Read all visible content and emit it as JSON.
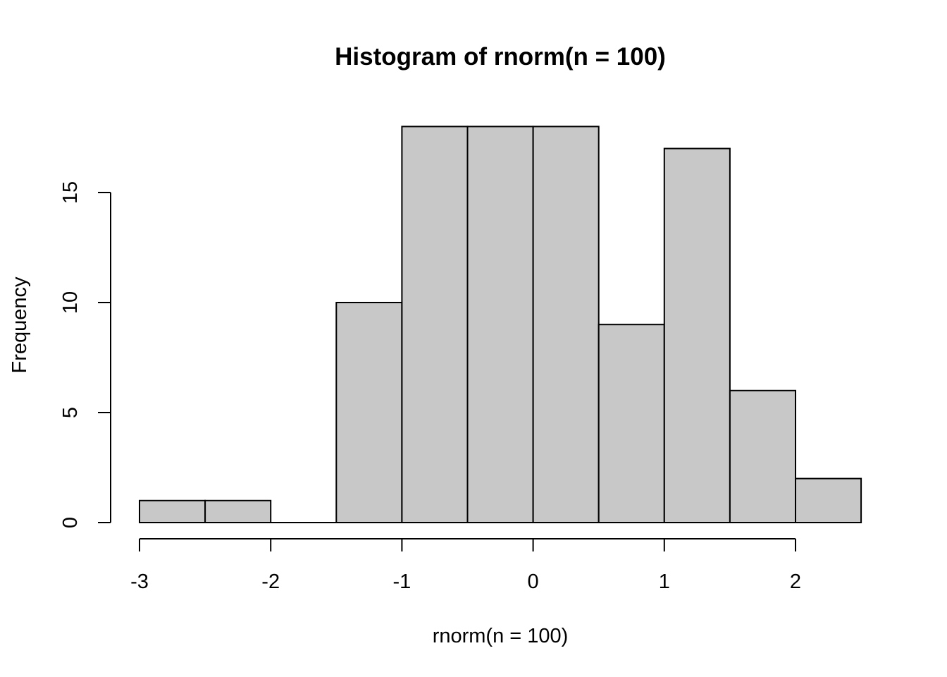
{
  "chart_data": {
    "type": "bar",
    "subtype": "histogram",
    "title": "Histogram of rnorm(n = 100)",
    "xlabel": "rnorm(n = 100)",
    "ylabel": "Frequency",
    "bins": [
      {
        "from": -3.0,
        "to": -2.5,
        "count": 1
      },
      {
        "from": -2.5,
        "to": -2.0,
        "count": 1
      },
      {
        "from": -2.0,
        "to": -1.5,
        "count": 0
      },
      {
        "from": -1.5,
        "to": -1.0,
        "count": 10
      },
      {
        "from": -1.0,
        "to": -0.5,
        "count": 18
      },
      {
        "from": -0.5,
        "to": 0.0,
        "count": 18
      },
      {
        "from": 0.0,
        "to": 0.5,
        "count": 18
      },
      {
        "from": 0.5,
        "to": 1.0,
        "count": 9
      },
      {
        "from": 1.0,
        "to": 1.5,
        "count": 17
      },
      {
        "from": 1.5,
        "to": 2.0,
        "count": 6
      },
      {
        "from": 2.0,
        "to": 2.5,
        "count": 2
      }
    ],
    "xlim": [
      -3,
      2.5
    ],
    "ylim": [
      0,
      18
    ],
    "xticks": [
      -3,
      -2,
      -1,
      0,
      1,
      2
    ],
    "yticks": [
      0,
      5,
      10,
      15
    ],
    "grid": false,
    "legend": "none",
    "bar_color": "#c8c8c8",
    "border_color": "#000000"
  }
}
